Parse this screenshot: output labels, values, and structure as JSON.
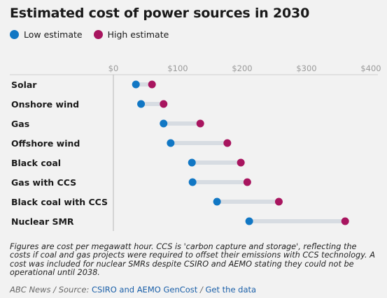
{
  "title": "Estimated cost of power sources in 2030",
  "colors": {
    "low": "#1177c4",
    "high": "#a8155f",
    "connector": "#d7dce2",
    "axis": "#9a9a9a"
  },
  "chart_data": {
    "type": "dot-range",
    "categories": [
      "Solar",
      "Onshore wind",
      "Gas",
      "Offshore wind",
      "Black coal",
      "Gas with CCS",
      "Black coal with CCS",
      "Nuclear SMR"
    ],
    "series": [
      {
        "name": "Low estimate",
        "values": [
          35,
          43,
          78,
          89,
          122,
          123,
          161,
          211
        ]
      },
      {
        "name": "High estimate",
        "values": [
          60,
          78,
          135,
          177,
          198,
          208,
          257,
          360
        ]
      }
    ],
    "x_ticks": [
      "$0",
      "$100",
      "$200",
      "$300",
      "$400"
    ],
    "x_tick_values": [
      0,
      100,
      200,
      300,
      400
    ],
    "xlim": [
      0,
      400
    ],
    "grid": false,
    "legend_position": "top-left"
  },
  "note": "Figures are cost per megawatt hour. CCS is 'carbon capture and storage', reflecting the costs if coal and gas projects were required to offset their emissions with CCS technology. A cost was included for nuclear SMRs despite CSIRO and AEMO stating they could not be operational until 2038.",
  "credit": {
    "prefix": "ABC News / Source: ",
    "source_link": "CSIRO and AEMO GenCost",
    "separator": " / ",
    "data_link": "Get the data"
  }
}
